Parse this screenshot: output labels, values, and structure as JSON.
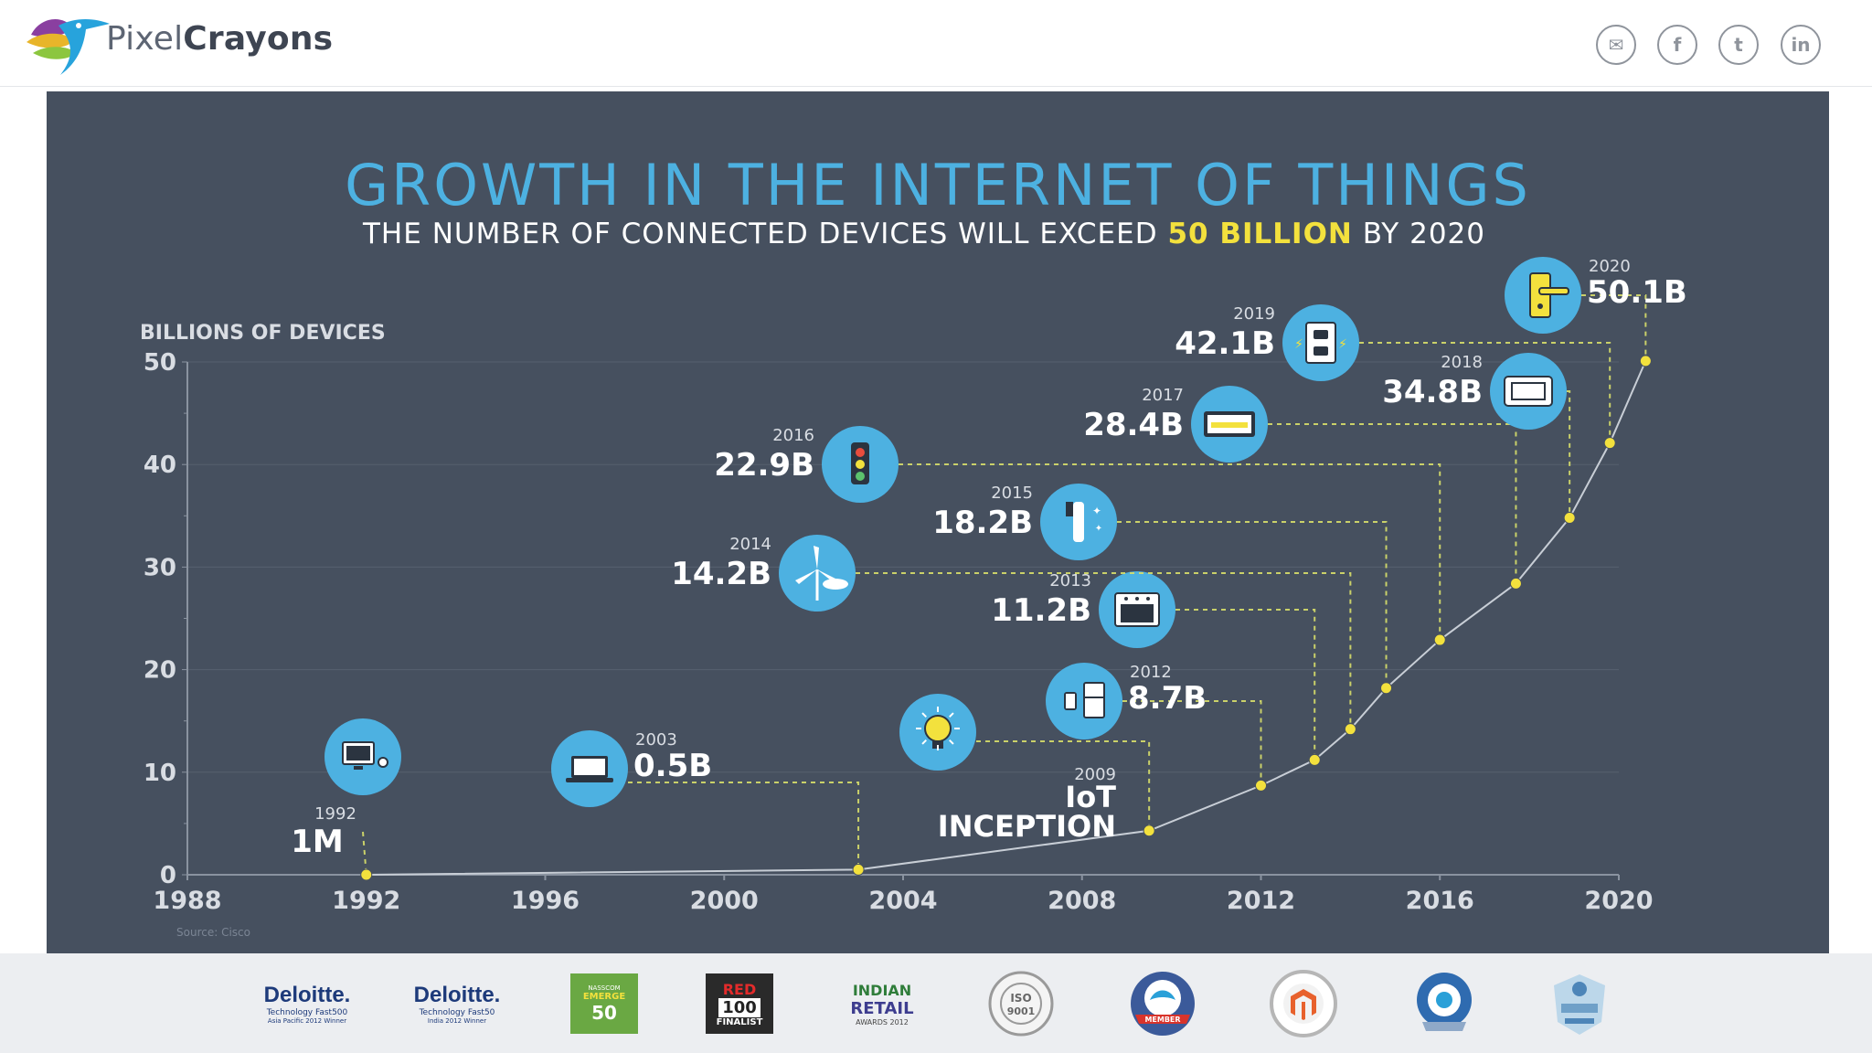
{
  "site": {
    "brand_light": "Pixel",
    "brand_bold": "Crayons",
    "social": [
      {
        "icon": "mail-icon",
        "glyph": "✉"
      },
      {
        "icon": "facebook-icon",
        "glyph": "f"
      },
      {
        "icon": "twitter-icon",
        "glyph": "t"
      },
      {
        "icon": "linkedin-icon",
        "glyph": "in"
      }
    ]
  },
  "infographic": {
    "title": "GROWTH IN THE INTERNET OF THINGS",
    "subtitle_pre": "THE NUMBER OF CONNECTED DEVICES WILL EXCEED ",
    "subtitle_highlight": "50 BILLION",
    "subtitle_post": " BY 2020",
    "source": "Source: Cisco"
  },
  "colors": {
    "panel": "#46505f",
    "title": "#4db1e1",
    "highlight": "#f3e13d",
    "point": "#f3e13d",
    "bubble": "#4db1e1",
    "text": "#ffffff",
    "axis_text": "#d9dde3"
  },
  "chart_data": {
    "type": "line",
    "ylabel": "BILLIONS OF DEVICES",
    "xlim": [
      1988,
      2020
    ],
    "ylim": [
      0,
      50
    ],
    "x_ticks": [
      "1988",
      "1992",
      "1996",
      "2000",
      "2004",
      "2008",
      "2012",
      "2016",
      "2020"
    ],
    "y_ticks": [
      "0",
      "10",
      "20",
      "30",
      "40",
      "50"
    ],
    "grid": true,
    "points": [
      {
        "x": 1992,
        "y": 0.001,
        "year_label": "1992",
        "value_label": "1M",
        "icon": "computer-icon"
      },
      {
        "x": 2003,
        "y": 0.5,
        "year_label": "2003",
        "value_label": "0.5B",
        "icon": "laptop-icon"
      },
      {
        "x": 2009.5,
        "y": 4.3,
        "year_label": "2009",
        "value_label": "IoT",
        "value_label2": "INCEPTION",
        "icon": "lightbulb-icon"
      },
      {
        "x": 2012,
        "y": 8.7,
        "year_label": "2012",
        "value_label": "8.7B",
        "icon": "smartwatch-icon"
      },
      {
        "x": 2013.2,
        "y": 11.2,
        "year_label": "2013",
        "value_label": "11.2B",
        "icon": "oven-icon"
      },
      {
        "x": 2014,
        "y": 14.2,
        "year_label": "2014",
        "value_label": "14.2B",
        "icon": "wind-turbine-icon"
      },
      {
        "x": 2014.8,
        "y": 18.2,
        "year_label": "2015",
        "value_label": "18.2B",
        "icon": "toothbrush-icon"
      },
      {
        "x": 2016,
        "y": 22.9,
        "year_label": "2016",
        "value_label": "22.9B",
        "icon": "traffic-light-icon"
      },
      {
        "x": 2017.7,
        "y": 28.4,
        "year_label": "2017",
        "value_label": "28.4B",
        "icon": "display-icon"
      },
      {
        "x": 2018.9,
        "y": 34.8,
        "year_label": "2018",
        "value_label": "34.8B",
        "icon": "thermostat-icon"
      },
      {
        "x": 2019.8,
        "y": 42.1,
        "year_label": "2019",
        "value_label": "42.1B",
        "icon": "power-outlet-icon"
      },
      {
        "x": 2020.6,
        "y": 50.1,
        "year_label": "2020",
        "value_label": "50.1B",
        "icon": "door-handle-icon"
      }
    ]
  },
  "awards": [
    {
      "name": "deloitte-asia-award",
      "line1": "Deloitte.",
      "line2": "Technology Fast500",
      "line3": "Asia Pacific 2012 Winner"
    },
    {
      "name": "deloitte-india-award",
      "line1": "Deloitte.",
      "line2": "Technology Fast50",
      "line3": "India 2012 Winner"
    },
    {
      "name": "nasscom-emerge-award",
      "line1": "NASSCOM",
      "line2": "EMERGE",
      "line3": "50"
    },
    {
      "name": "red-herring-award",
      "line1": "RED",
      "line2": "100",
      "line3": "FINALIST"
    },
    {
      "name": "indian-retail-award",
      "line1": "INDIAN",
      "line2": "RETAIL",
      "line3": "AWARDS 2012"
    },
    {
      "name": "iso-badge",
      "line1": "ISO",
      "line2": "9001"
    },
    {
      "name": "association-member-badge",
      "line1": "",
      "line2": "MEMBER"
    },
    {
      "name": "magento-badge",
      "line1": "",
      "line2": ""
    },
    {
      "name": "silver-sponsor-badge",
      "line1": "",
      "line2": ""
    },
    {
      "name": "sponsor-badge",
      "line1": "",
      "line2": ""
    }
  ]
}
